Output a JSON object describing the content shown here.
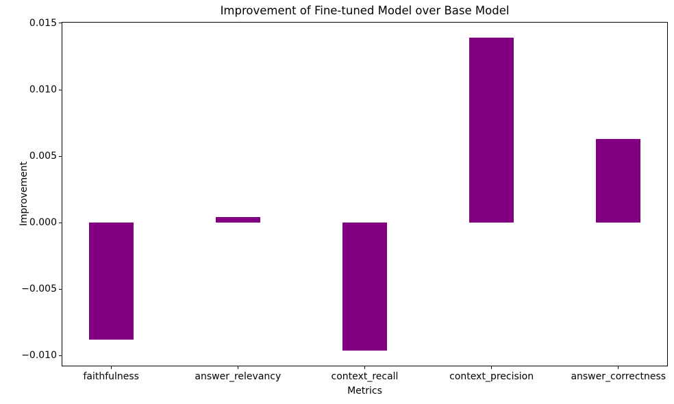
{
  "chart_data": {
    "type": "bar",
    "title": "Improvement of Fine-tuned Model over Base Model",
    "xlabel": "Metrics",
    "ylabel": "Improvement",
    "categories": [
      "faithfulness",
      "answer_relevancy",
      "context_recall",
      "context_precision",
      "answer_correctness"
    ],
    "values": [
      -0.0088,
      0.0004,
      -0.0096,
      0.0139,
      0.0063
    ],
    "bar_color": "#800080",
    "background_color": "#ffffff",
    "text_color": "#000000",
    "bar_width_units": 0.35,
    "xlim": [
      -0.39,
      4.39
    ],
    "ylim": [
      -0.0108,
      0.0151
    ],
    "yticks": [
      -0.01,
      -0.005,
      0,
      0.005,
      0.01,
      0.015
    ],
    "ytick_decimals": 3,
    "grid": false,
    "legend": "none"
  }
}
